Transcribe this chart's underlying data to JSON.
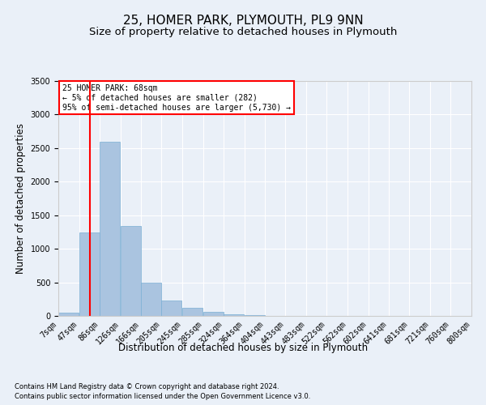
{
  "title1": "25, HOMER PARK, PLYMOUTH, PL9 9NN",
  "title2": "Size of property relative to detached houses in Plymouth",
  "xlabel": "Distribution of detached houses by size in Plymouth",
  "ylabel": "Number of detached properties",
  "footnote1": "Contains HM Land Registry data © Crown copyright and database right 2024.",
  "footnote2": "Contains public sector information licensed under the Open Government Licence v3.0.",
  "annotation_line1": "25 HOMER PARK: 68sqm",
  "annotation_line2": "← 5% of detached houses are smaller (282)",
  "annotation_line3": "95% of semi-detached houses are larger (5,730) →",
  "bar_left_edges": [
    7,
    47,
    86,
    126,
    166,
    205,
    245,
    285,
    324,
    364,
    404,
    443,
    483,
    522,
    562,
    602,
    641,
    681,
    721,
    760
  ],
  "bar_widths": [
    39,
    39,
    39,
    39,
    39,
    39,
    39,
    39,
    39,
    39,
    39,
    39,
    39,
    39,
    39,
    39,
    39,
    39,
    39,
    39
  ],
  "bar_heights": [
    50,
    1240,
    2590,
    1340,
    500,
    235,
    115,
    55,
    25,
    10,
    5,
    5,
    2,
    2,
    1,
    1,
    1,
    1,
    0,
    0
  ],
  "bar_color": "#aac4e0",
  "bar_edge_color": "#7aafd4",
  "tick_labels": [
    "7sqm",
    "47sqm",
    "86sqm",
    "126sqm",
    "166sqm",
    "205sqm",
    "245sqm",
    "285sqm",
    "324sqm",
    "364sqm",
    "404sqm",
    "443sqm",
    "483sqm",
    "522sqm",
    "562sqm",
    "602sqm",
    "641sqm",
    "681sqm",
    "721sqm",
    "760sqm",
    "800sqm"
  ],
  "red_line_x": 68,
  "ylim": [
    0,
    3500
  ],
  "xlim": [
    7,
    800
  ],
  "yticks": [
    0,
    500,
    1000,
    1500,
    2000,
    2500,
    3000,
    3500
  ],
  "bg_color": "#eaf0f8",
  "plot_bg_color": "#eaf0f8",
  "grid_color": "#ffffff",
  "title1_fontsize": 11,
  "title2_fontsize": 9.5,
  "axis_fontsize": 8.5,
  "tick_fontsize": 7,
  "footnote_fontsize": 6
}
